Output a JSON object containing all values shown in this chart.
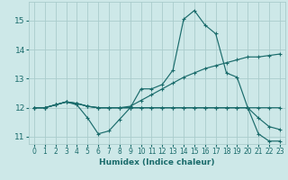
{
  "xlabel": "Humidex (Indice chaleur)",
  "bg_color": "#cde8e8",
  "grid_color": "#aacccc",
  "line_color": "#1a6b6b",
  "xlim": [
    -0.5,
    23.5
  ],
  "ylim": [
    10.75,
    15.65
  ],
  "xticks": [
    0,
    1,
    2,
    3,
    4,
    5,
    6,
    7,
    8,
    9,
    10,
    11,
    12,
    13,
    14,
    15,
    16,
    17,
    18,
    19,
    20,
    21,
    22,
    23
  ],
  "yticks": [
    11,
    12,
    13,
    14,
    15
  ],
  "series": [
    [
      12.0,
      12.0,
      12.1,
      12.2,
      12.1,
      11.65,
      11.1,
      11.2,
      11.6,
      12.0,
      12.65,
      12.65,
      12.8,
      13.3,
      15.05,
      15.35,
      14.85,
      14.55,
      13.2,
      13.05,
      12.0,
      11.1,
      10.85,
      10.85
    ],
    [
      12.0,
      12.0,
      12.1,
      12.2,
      12.15,
      12.05,
      12.0,
      12.0,
      12.0,
      12.0,
      12.0,
      12.0,
      12.0,
      12.0,
      12.0,
      12.0,
      12.0,
      12.0,
      12.0,
      12.0,
      12.0,
      12.0,
      12.0,
      12.0
    ],
    [
      12.0,
      12.0,
      12.1,
      12.2,
      12.15,
      12.05,
      12.0,
      12.0,
      12.0,
      12.05,
      12.25,
      12.45,
      12.65,
      12.85,
      13.05,
      13.2,
      13.35,
      13.45,
      13.55,
      13.65,
      13.75,
      13.75,
      13.8,
      13.85
    ],
    [
      12.0,
      12.0,
      12.1,
      12.2,
      12.15,
      12.05,
      12.0,
      12.0,
      12.0,
      12.0,
      12.0,
      12.0,
      12.0,
      12.0,
      12.0,
      12.0,
      12.0,
      12.0,
      12.0,
      12.0,
      12.0,
      11.65,
      11.35,
      11.25
    ]
  ]
}
